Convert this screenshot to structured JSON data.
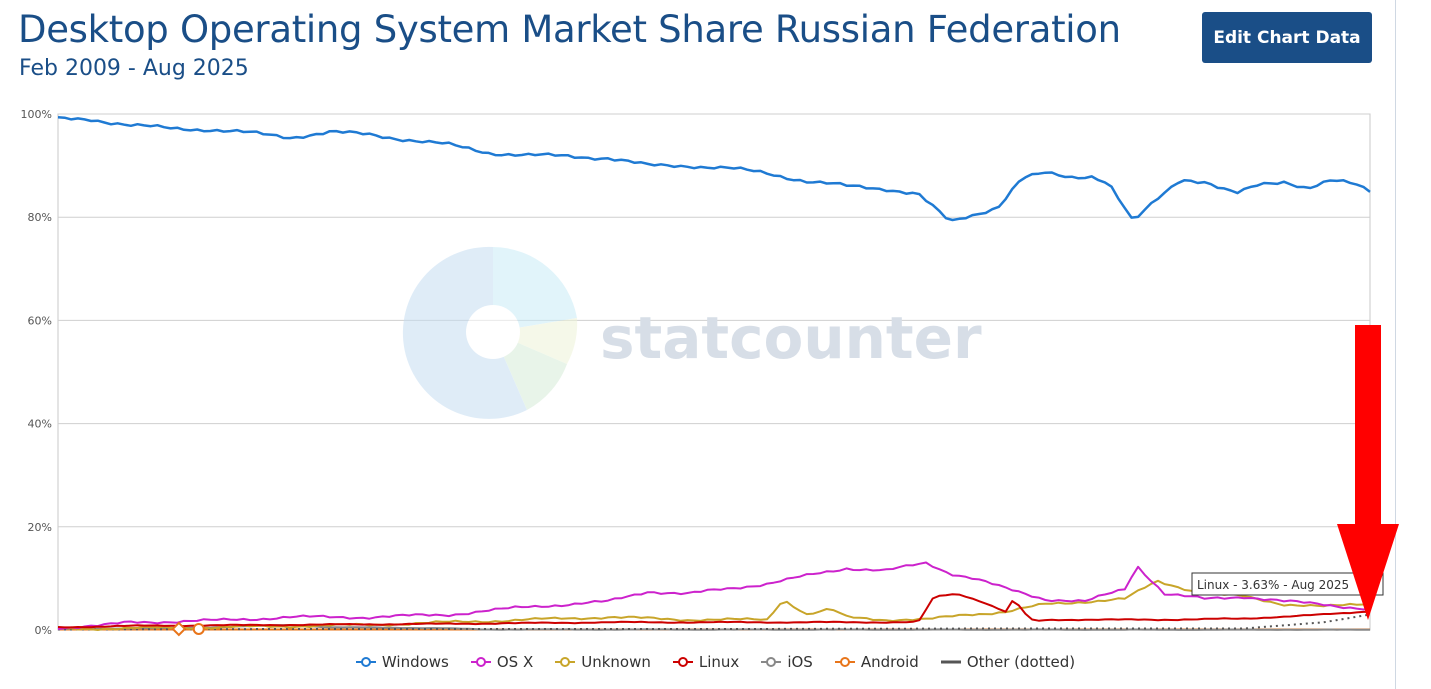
{
  "header": {
    "title": "Desktop Operating System Market Share Russian Federation",
    "subtitle": "Feb 2009 - Aug 2025",
    "edit_button": "Edit Chart Data"
  },
  "watermark": {
    "text": "statcounter"
  },
  "tooltip": {
    "text": "Linux - 3.63% - Aug 2025"
  },
  "annotation": {
    "arrow_color": "#ff0000"
  },
  "colors": {
    "Windows": "#1f7ad3",
    "OS X": "#cc22cc",
    "Unknown": "#c8a52a",
    "Linux": "#cc0000",
    "iOS": "#888888",
    "Android": "#e8751a",
    "Other (dotted)": "#555555"
  },
  "chart_data": {
    "type": "line",
    "title": "Desktop Operating System Market Share Russian Federation",
    "subtitle": "Feb 2009 - Aug 2025",
    "x_range": [
      "Feb 2009",
      "Aug 2025"
    ],
    "ylim": [
      0,
      100
    ],
    "yticks": [
      "0%",
      "20%",
      "40%",
      "60%",
      "80%",
      "100%"
    ],
    "grid": true,
    "legend_position": "bottom",
    "series": [
      {
        "name": "Windows",
        "x": [
          2009.08,
          2009.5,
          2010,
          2010.5,
          2011,
          2011.5,
          2012,
          2012.5,
          2013,
          2013.5,
          2014,
          2014.5,
          2015,
          2015.5,
          2016,
          2016.5,
          2017,
          2017.5,
          2018,
          2018.5,
          2019,
          2019.5,
          2019.9,
          2020.3,
          2020.6,
          2020.9,
          2021.2,
          2021.5,
          2021.8,
          2022.1,
          2022.3,
          2022.6,
          2022.9,
          2023.2,
          2023.5,
          2023.7,
          2023.9,
          2024.2,
          2024.5,
          2024.8,
          2025.1,
          2025.4,
          2025.58
        ],
        "values": [
          99,
          99,
          97.8,
          97.2,
          97,
          96.3,
          95.5,
          96.5,
          96,
          95,
          94,
          92.5,
          92,
          91.8,
          91.5,
          90,
          90,
          89.5,
          88.5,
          87,
          86,
          85.5,
          84.5,
          79,
          80.5,
          82,
          87.5,
          88.5,
          87.8,
          88,
          86.5,
          79,
          83.5,
          87.5,
          86.8,
          85.5,
          84.5,
          86.5,
          87,
          85.5,
          87,
          86.5,
          85.2
        ]
      },
      {
        "name": "OS X",
        "x": [
          2009.08,
          2009.6,
          2010,
          2011,
          2012,
          2013,
          2014,
          2015,
          2016,
          2016.5,
          2017,
          2018,
          2018.5,
          2019,
          2019.5,
          2020,
          2020.3,
          2020.6,
          2021,
          2021.5,
          2022,
          2022.5,
          2022.65,
          2023,
          2023.5,
          2024,
          2024.5,
          2025,
          2025.58
        ],
        "values": [
          0.5,
          0.8,
          1.5,
          1.8,
          2.5,
          2.5,
          3.0,
          4.5,
          5.5,
          7.5,
          7.0,
          9.0,
          10.5,
          12.0,
          11.5,
          13.0,
          11.0,
          10.0,
          8.0,
          6.0,
          5.5,
          8.0,
          12.5,
          7.0,
          6.0,
          6.5,
          5.5,
          5.0,
          4.0
        ]
      },
      {
        "name": "Unknown",
        "x": [
          2009.08,
          2011,
          2013,
          2015,
          2016,
          2017,
          2018,
          2018.2,
          2018.5,
          2018.8,
          2019,
          2019.5,
          2020,
          2020.5,
          2021,
          2021.5,
          2022,
          2022.5,
          2022.9,
          2023.5,
          2024,
          2024.5,
          2025,
          2025.58
        ],
        "values": [
          0.2,
          0.5,
          1.0,
          2.0,
          2.5,
          2.0,
          2.0,
          6.0,
          3.0,
          4.0,
          2.5,
          2.0,
          2.0,
          3.0,
          3.5,
          5.0,
          5.5,
          6.0,
          9.5,
          7.0,
          6.5,
          5.0,
          4.5,
          5.2
        ]
      },
      {
        "name": "Linux",
        "x": [
          2009.08,
          2010,
          2012,
          2014,
          2016,
          2018,
          2019.9,
          2020.1,
          2020.4,
          2020.7,
          2021.0,
          2021.1,
          2021.3,
          2021.4,
          2021.6,
          2022,
          2023,
          2024,
          2025,
          2025.58
        ],
        "values": [
          0.5,
          0.8,
          1.0,
          1.2,
          1.5,
          1.5,
          1.5,
          6.5,
          7.0,
          5.5,
          3.5,
          6.0,
          2.0,
          1.8,
          2.0,
          2.0,
          2.0,
          2.2,
          3.0,
          3.63
        ]
      },
      {
        "name": "iOS",
        "x": [
          2009.08,
          2010,
          2011,
          2012,
          2012.5,
          2013,
          2014,
          2014.5,
          2025.58
        ],
        "values": [
          0.2,
          0.3,
          0.5,
          1.0,
          0.5,
          0.5,
          0.3,
          0.1,
          0.05
        ]
      },
      {
        "name": "Android",
        "x": [
          2009.08,
          2010,
          2012,
          2015,
          2020,
          2025.58
        ],
        "values": [
          0.1,
          0.1,
          0.1,
          0.1,
          0.1,
          0.1
        ]
      },
      {
        "name": "Other (dotted)",
        "x": [
          2009.08,
          2012,
          2015,
          2018,
          2021,
          2024,
          2025,
          2025.58
        ],
        "values": [
          0.1,
          0.2,
          0.2,
          0.2,
          0.3,
          0.3,
          1.5,
          3.0
        ]
      }
    ]
  }
}
